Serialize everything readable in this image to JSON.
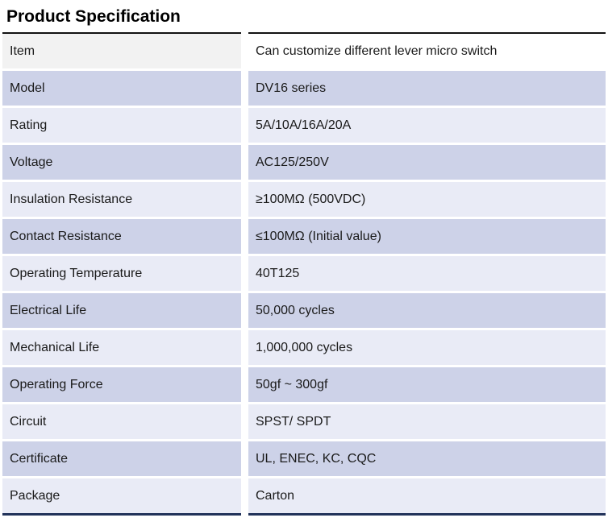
{
  "page": {
    "title": "Product Specification"
  },
  "table": {
    "rows": [
      {
        "label": "Item",
        "value": "Can customize different lever micro switch"
      },
      {
        "label": "Model",
        "value": "DV16 series"
      },
      {
        "label": "Rating",
        "value": "5A/10A/16A/20A"
      },
      {
        "label": "Voltage",
        "value": "AC125/250V"
      },
      {
        "label": "Insulation Resistance",
        "value": "≥100MΩ (500VDC)"
      },
      {
        "label": "Contact Resistance",
        "value": "≤100MΩ (Initial value)"
      },
      {
        "label": "Operating Temperature",
        "value": "40T125"
      },
      {
        "label": "Electrical Life",
        "value": "50,000 cycles"
      },
      {
        "label": "Mechanical Life",
        "value": "1,000,000 cycles"
      },
      {
        "label": "Operating Force",
        "value": "50gf ~ 300gf"
      },
      {
        "label": "Circuit",
        "value": "SPST/ SPDT"
      },
      {
        "label": "Certificate",
        "value": "UL, ENEC, KC, CQC"
      },
      {
        "label": "Package",
        "value": "Carton"
      }
    ]
  },
  "colors": {
    "title_text": "#000000",
    "cell_text": "#1a1a1a",
    "top_rule": "#121212",
    "bottom_rule": "#22335a",
    "header_label_bg": "#f2f2f2",
    "header_value_bg": "#ffffff",
    "row_lavender_bg": "#cdd2e8",
    "row_pale_bg": "#e9ebf6"
  }
}
